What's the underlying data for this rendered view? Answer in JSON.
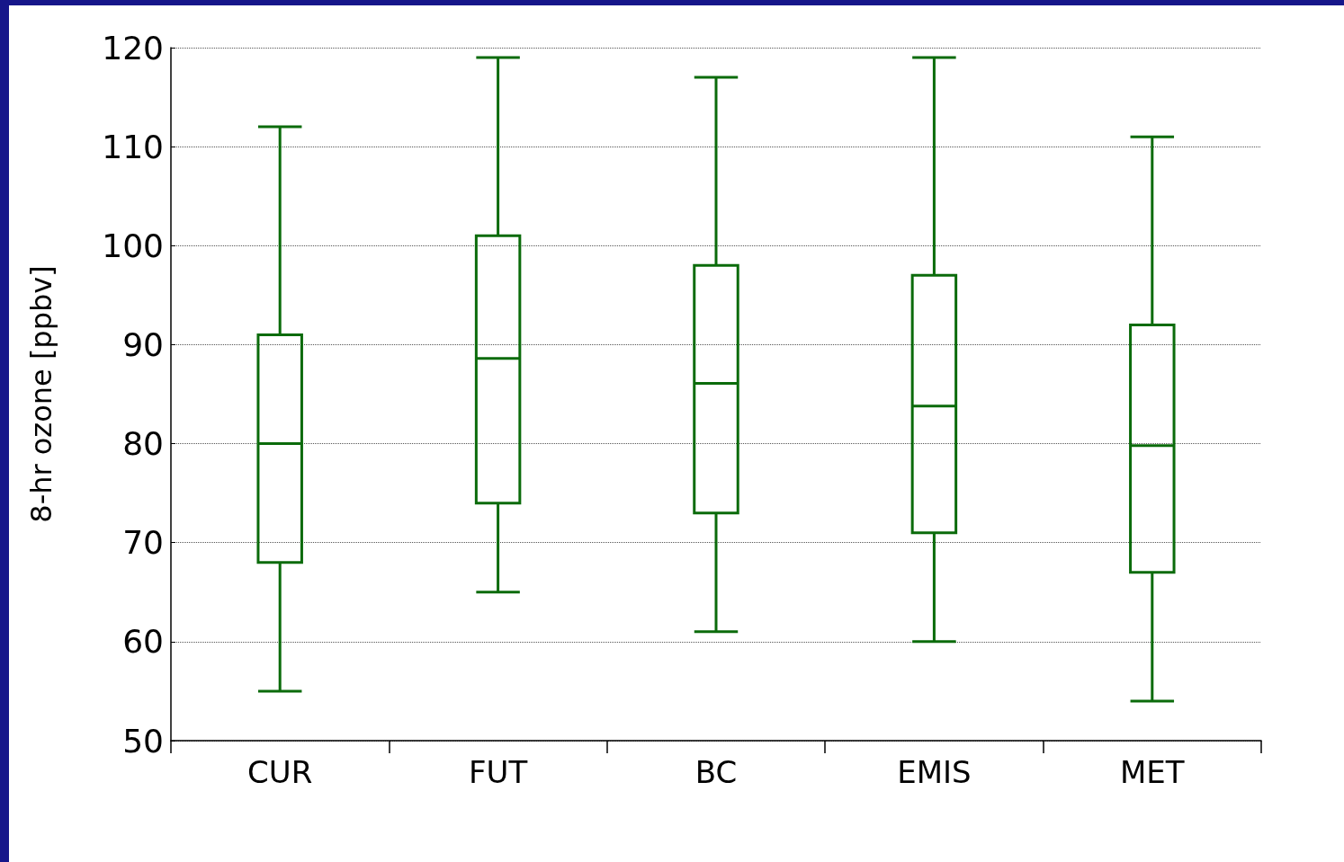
{
  "chart_data": {
    "type": "box",
    "ylabel": "8-hr ozone [ppbv]",
    "categories": [
      "CUR",
      "FUT",
      "BC",
      "EMIS",
      "MET"
    ],
    "series": [
      {
        "color": "#0b6b0b",
        "boxes": [
          {
            "low": 55,
            "q1": 68,
            "median": 80,
            "q3": 91,
            "high": 112
          },
          {
            "low": 65,
            "q1": 74,
            "median": 88.6,
            "q3": 101,
            "high": 119
          },
          {
            "low": 61,
            "q1": 73,
            "median": 86.1,
            "q3": 98,
            "high": 117
          },
          {
            "low": 60,
            "q1": 71,
            "median": 83.8,
            "q3": 97,
            "high": 119
          },
          {
            "low": 54,
            "q1": 67,
            "median": 79.8,
            "q3": 92,
            "high": 111
          }
        ]
      }
    ],
    "ylim": [
      50,
      120
    ],
    "yticks": [
      50,
      60,
      70,
      80,
      90,
      100,
      110,
      120
    ],
    "grid": "y"
  }
}
